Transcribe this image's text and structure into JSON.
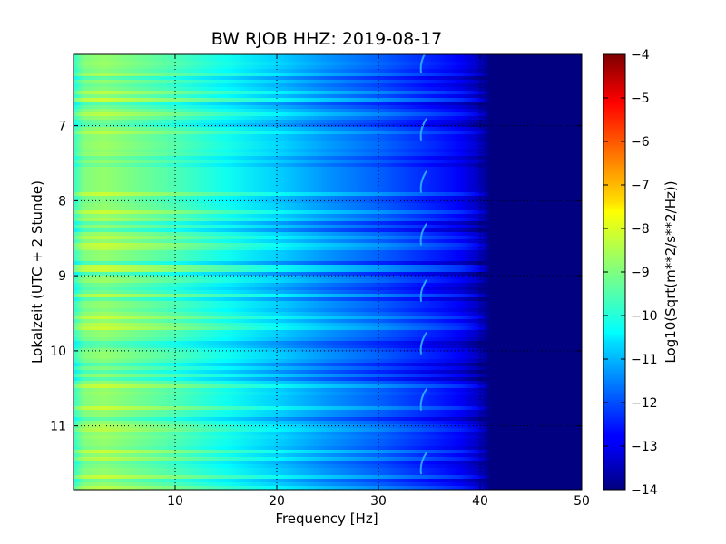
{
  "chart_data": {
    "type": "heatmap",
    "title": "BW RJOB HHZ: 2019-08-17",
    "xlabel": "Frequency [Hz]",
    "ylabel": "Lokalzeit (UTC + 2 Stunde)",
    "xlim": [
      0,
      50
    ],
    "ylim": [
      11.85,
      6.05
    ],
    "x_ticks": [
      {
        "value": 10,
        "label": "10"
      },
      {
        "value": 20,
        "label": "20"
      },
      {
        "value": 30,
        "label": "30"
      },
      {
        "value": 40,
        "label": "40"
      },
      {
        "value": 50,
        "label": "50"
      }
    ],
    "y_ticks": [
      {
        "value": 7,
        "label": "7"
      },
      {
        "value": 8,
        "label": "8"
      },
      {
        "value": 9,
        "label": "9"
      },
      {
        "value": 10,
        "label": "10"
      },
      {
        "value": 11,
        "label": "11"
      }
    ],
    "grid": true,
    "colormap": "jet",
    "colorbar": {
      "label": "Log10(Sqrt(m**2/s**2/Hz))",
      "min": -14,
      "max": -4,
      "ticks": [
        "-4",
        "-5",
        "-6",
        "-7",
        "-8",
        "-9",
        "-10",
        "-11",
        "-12",
        "-13",
        "-14"
      ]
    },
    "spectrum_profile": {
      "frequency_hz": [
        0,
        1,
        3,
        6,
        10,
        15,
        20,
        25,
        30,
        35,
        38,
        40,
        41,
        50
      ],
      "log_amplitude": [
        -9.8,
        -9.0,
        -8.8,
        -9.1,
        -9.5,
        -10.1,
        -10.7,
        -11.3,
        -11.8,
        -12.4,
        -12.8,
        -13.4,
        -14,
        -14
      ]
    }
  }
}
